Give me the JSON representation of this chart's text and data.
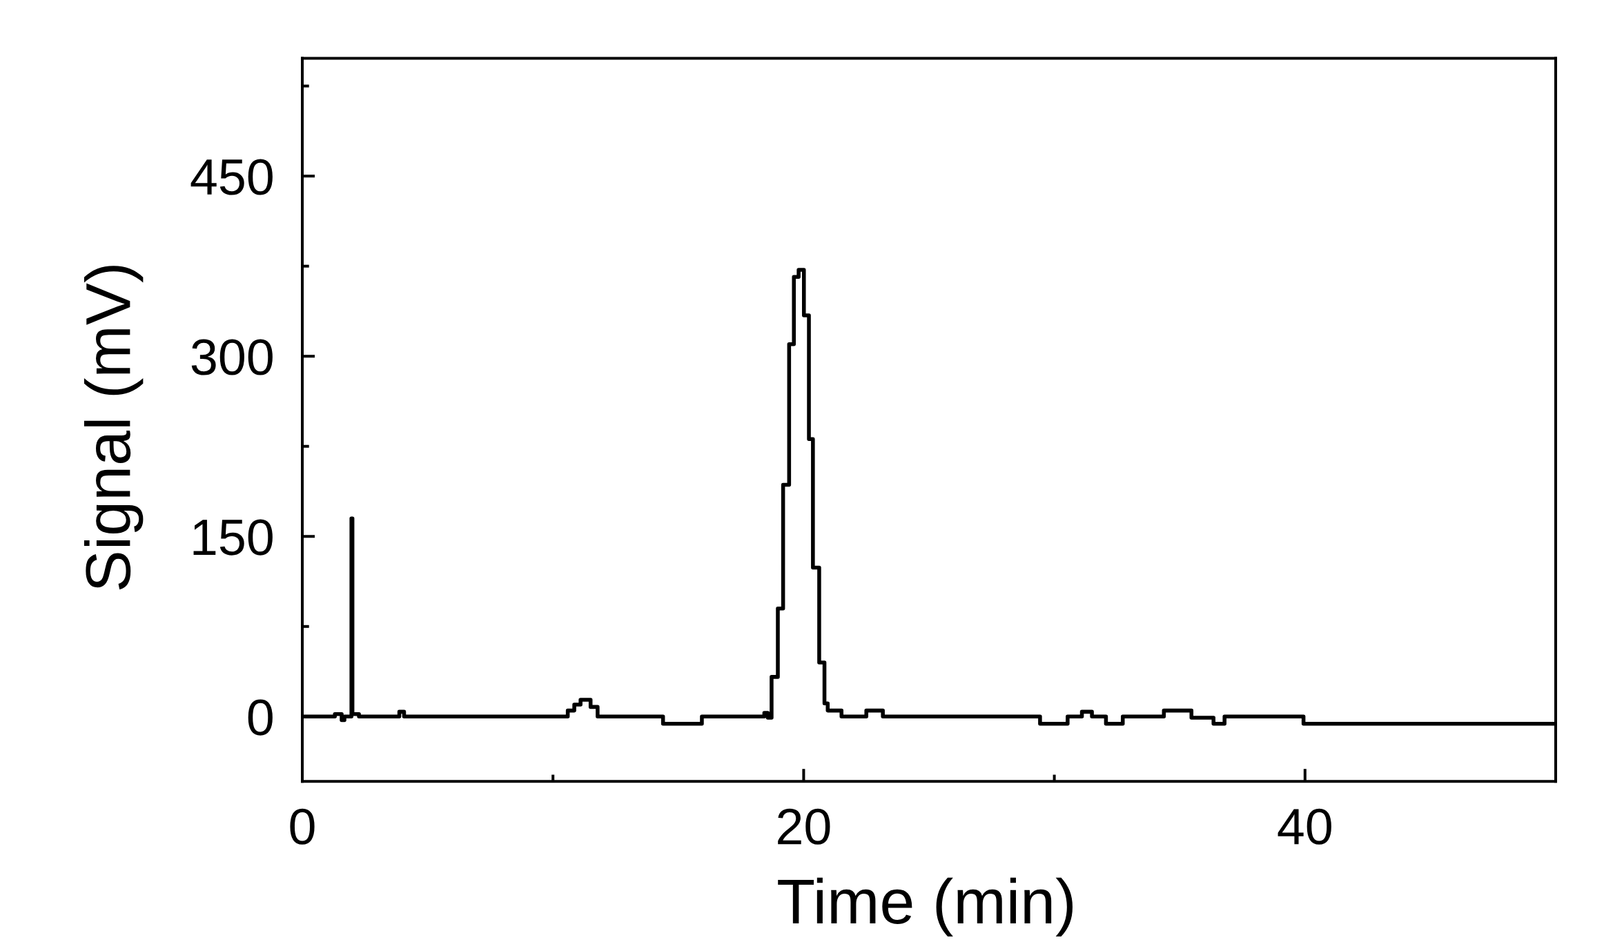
{
  "chart_data": {
    "type": "step",
    "xlabel": "Time (min)",
    "ylabel": "Signal (mV)",
    "color": "#000000",
    "x": [
      0,
      1.3,
      1.57,
      1.68,
      1.96,
      2.0,
      2.26,
      3.87,
      4.06,
      10.59,
      10.85,
      11.1,
      11.5,
      11.78,
      14.39,
      15.94,
      18.43,
      18.57,
      18.72,
      18.97,
      19.18,
      19.42,
      19.61,
      19.8,
      20.01,
      20.21,
      20.37,
      20.62,
      20.83,
      20.96,
      21.51,
      22.5,
      23.16,
      29.43,
      30.53,
      31.1,
      31.5,
      32.06,
      32.73,
      34.37,
      35.47,
      36.35,
      36.79,
      39.94,
      50
    ],
    "values": [
      0,
      2,
      -3,
      0,
      165,
      2,
      0,
      4,
      0,
      5,
      10,
      14,
      8,
      0,
      -6,
      0,
      3,
      -1,
      33,
      90,
      193,
      310,
      366,
      372,
      334,
      231,
      124,
      45,
      11,
      5,
      0,
      5,
      0,
      -6,
      0,
      4,
      0,
      -6,
      0,
      5,
      -1,
      -6,
      0,
      -6,
      -6
    ],
    "xlim": [
      0,
      50
    ],
    "ylim": [
      -54,
      548
    ],
    "xticks": [
      0,
      {
        "value": 10,
        "label": null
      },
      20,
      {
        "value": 30,
        "label": null
      },
      40
    ],
    "yticks": [
      0,
      {
        "value": 75,
        "label": null
      },
      150,
      {
        "value": 225,
        "label": null
      },
      300,
      {
        "value": 375,
        "label": null
      },
      450,
      {
        "value": 525,
        "label": null
      }
    ]
  }
}
